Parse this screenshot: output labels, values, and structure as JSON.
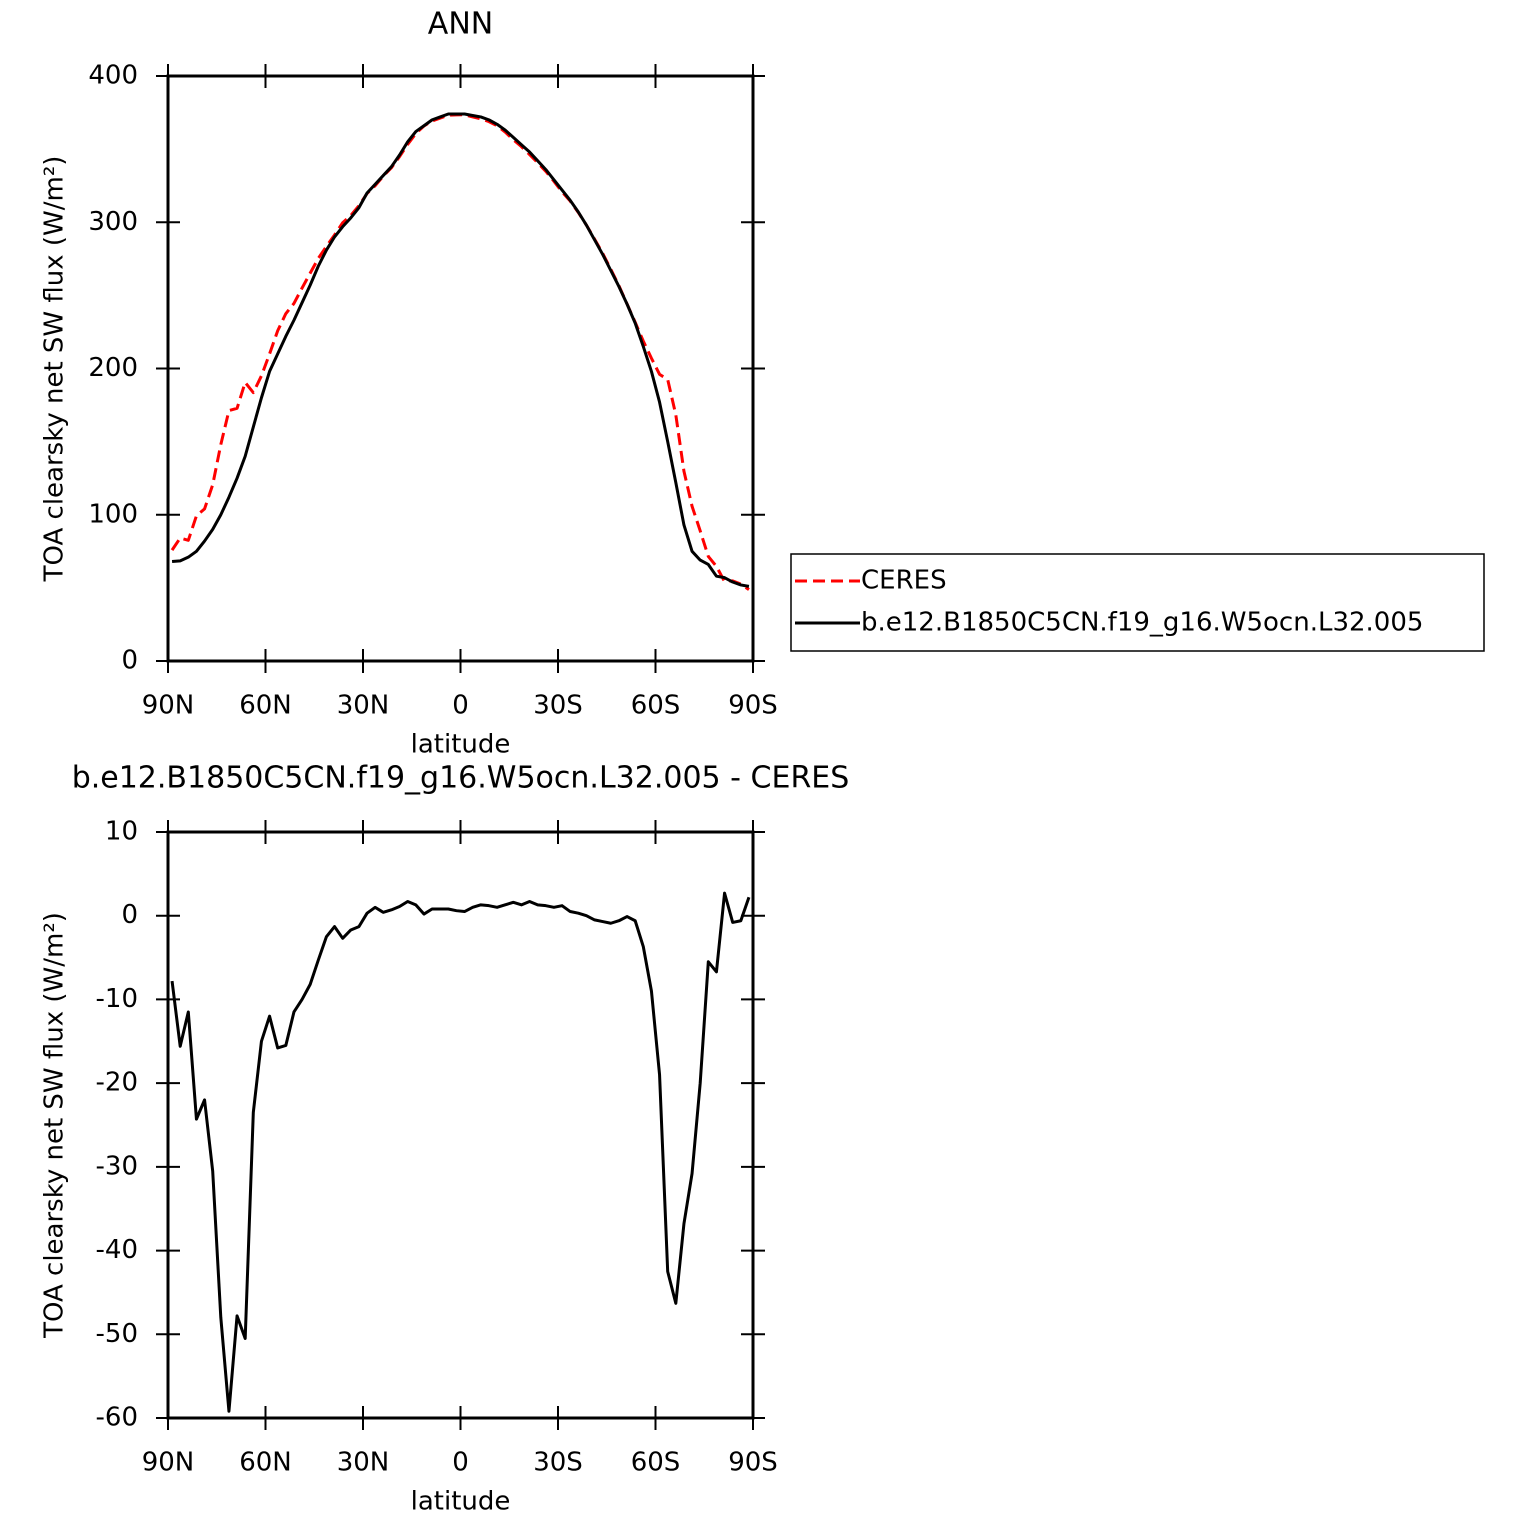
{
  "chart_data": [
    {
      "type": "line",
      "title": "ANN",
      "ylabel": "TOA clearsky net SW flux (W/m²)",
      "xlabel": "latitude",
      "xlim": [
        90,
        -90
      ],
      "xticks": [
        {
          "value": 90,
          "label": "90N"
        },
        {
          "value": 60,
          "label": "60N"
        },
        {
          "value": 30,
          "label": "30N"
        },
        0,
        {
          "value": -30,
          "label": "30S"
        },
        {
          "value": -60,
          "label": "60S"
        },
        {
          "value": -90,
          "label": "90S"
        }
      ],
      "ylim": [
        0,
        400
      ],
      "yticks": [
        0,
        100,
        200,
        300,
        400
      ],
      "legend": "right",
      "x": [
        88.75,
        86.25,
        83.75,
        81.25,
        78.75,
        76.25,
        73.75,
        71.25,
        68.75,
        66.25,
        63.75,
        61.25,
        58.75,
        56.25,
        53.75,
        51.25,
        48.75,
        46.25,
        43.75,
        41.25,
        38.75,
        36.25,
        33.75,
        31.25,
        28.75,
        26.25,
        23.75,
        21.25,
        18.75,
        16.25,
        13.75,
        11.25,
        8.75,
        6.25,
        3.75,
        1.25,
        -1.25,
        -3.75,
        -6.25,
        -8.75,
        -11.25,
        -13.75,
        -16.25,
        -18.75,
        -21.25,
        -23.75,
        -26.25,
        -28.75,
        -31.25,
        -33.75,
        -36.25,
        -38.75,
        -41.25,
        -43.75,
        -46.25,
        -48.75,
        -51.25,
        -53.75,
        -56.25,
        -58.75,
        -61.25,
        -63.75,
        -66.25,
        -68.75,
        -71.25,
        -73.75,
        -76.25,
        -78.75,
        -81.25,
        -83.75,
        -86.25,
        -88.75
      ],
      "series": [
        {
          "name": "CERES",
          "color": "#ff0000",
          "dash": true,
          "values": [
            75.8,
            84.1,
            82.5,
            99.3,
            104,
            120.5,
            148,
            171.2,
            172.8,
            190.5,
            183.5,
            195,
            210,
            225.8,
            237.5,
            244.5,
            255,
            265.2,
            275.3,
            283.5,
            291.3,
            299.7,
            304.7,
            311.3,
            319.7,
            325,
            331.6,
            337.3,
            344.9,
            353.3,
            360.7,
            365.8,
            369.2,
            371.2,
            373.2,
            373.4,
            373.5,
            372,
            370.7,
            368.8,
            366,
            361.7,
            356.4,
            351.7,
            346.3,
            340.7,
            334.8,
            328,
            320.8,
            314.5,
            306.7,
            298,
            288.5,
            278.7,
            267.9,
            256.6,
            244.1,
            231.6,
            218.7,
            207,
            196,
            192.5,
            168.3,
            129.8,
            105.8,
            89,
            71.5,
            64.7,
            54.3,
            54.8,
            52.6,
            48.8
          ]
        },
        {
          "name": "b.e12.B1850C5CN.f19_g16.W5ocn.L32.005",
          "color": "#000000",
          "dash": false,
          "values": [
            68,
            68.5,
            71,
            75,
            82,
            90,
            100,
            112,
            125,
            140,
            160,
            180,
            198,
            210,
            222,
            233,
            245,
            257,
            270,
            281,
            290,
            297,
            303,
            310,
            320,
            326,
            332,
            338,
            346,
            355,
            362,
            366,
            370,
            372,
            374,
            374,
            374,
            373,
            372,
            370,
            367,
            363,
            358,
            353,
            348,
            342,
            336,
            329,
            322,
            315,
            307,
            298,
            288,
            278,
            267,
            256,
            244,
            231,
            215,
            198,
            177,
            150,
            122,
            93,
            75,
            69,
            66,
            58,
            57,
            54,
            52,
            51
          ]
        }
      ]
    },
    {
      "type": "line",
      "title": "b.e12.B1850C5CN.f19_g16.W5ocn.L32.005 - CERES",
      "ylabel": "TOA clearsky net SW flux (W/m²)",
      "xlabel": "latitude",
      "xlim": [
        90,
        -90
      ],
      "xticks": [
        {
          "value": 90,
          "label": "90N"
        },
        {
          "value": 60,
          "label": "60N"
        },
        {
          "value": 30,
          "label": "30N"
        },
        0,
        {
          "value": -30,
          "label": "30S"
        },
        {
          "value": -60,
          "label": "60S"
        },
        {
          "value": -90,
          "label": "90S"
        }
      ],
      "ylim": [
        -60,
        10
      ],
      "yticks": [
        -60,
        -50,
        -40,
        -30,
        -20,
        -10,
        0,
        10
      ],
      "x": [
        88.75,
        86.25,
        83.75,
        81.25,
        78.75,
        76.25,
        73.75,
        71.25,
        68.75,
        66.25,
        63.75,
        61.25,
        58.75,
        56.25,
        53.75,
        51.25,
        48.75,
        46.25,
        43.75,
        41.25,
        38.75,
        36.25,
        33.75,
        31.25,
        28.75,
        26.25,
        23.75,
        21.25,
        18.75,
        16.25,
        13.75,
        11.25,
        8.75,
        6.25,
        3.75,
        1.25,
        -1.25,
        -3.75,
        -6.25,
        -8.75,
        -11.25,
        -13.75,
        -16.25,
        -18.75,
        -21.25,
        -23.75,
        -26.25,
        -28.75,
        -31.25,
        -33.75,
        -36.25,
        -38.75,
        -41.25,
        -43.75,
        -46.25,
        -48.75,
        -51.25,
        -53.75,
        -56.25,
        -58.75,
        -61.25,
        -63.75,
        -66.25,
        -68.75,
        -71.25,
        -73.75,
        -76.25,
        -78.75,
        -81.25,
        -83.75,
        -86.25,
        -88.75
      ],
      "series": [
        {
          "color": "#000000",
          "dash": false,
          "values": [
            -7.8,
            -15.6,
            -11.5,
            -24.3,
            -22,
            -30.5,
            -48,
            -59.2,
            -47.8,
            -50.5,
            -23.5,
            -15,
            -12,
            -15.8,
            -15.5,
            -11.5,
            -10,
            -8.2,
            -5.3,
            -2.5,
            -1.3,
            -2.7,
            -1.7,
            -1.3,
            0.3,
            1,
            0.4,
            0.7,
            1.1,
            1.7,
            1.3,
            0.2,
            0.8,
            0.8,
            0.8,
            0.6,
            0.5,
            1,
            1.3,
            1.2,
            1,
            1.3,
            1.6,
            1.3,
            1.7,
            1.3,
            1.2,
            1,
            1.2,
            0.5,
            0.3,
            0,
            -0.5,
            -0.7,
            -0.9,
            -0.6,
            -0.1,
            -0.6,
            -3.7,
            -9,
            -19,
            -42.5,
            -46.3,
            -36.8,
            -30.8,
            -20,
            -5.5,
            -6.7,
            2.7,
            -0.8,
            -0.6,
            2.2
          ]
        }
      ]
    }
  ]
}
